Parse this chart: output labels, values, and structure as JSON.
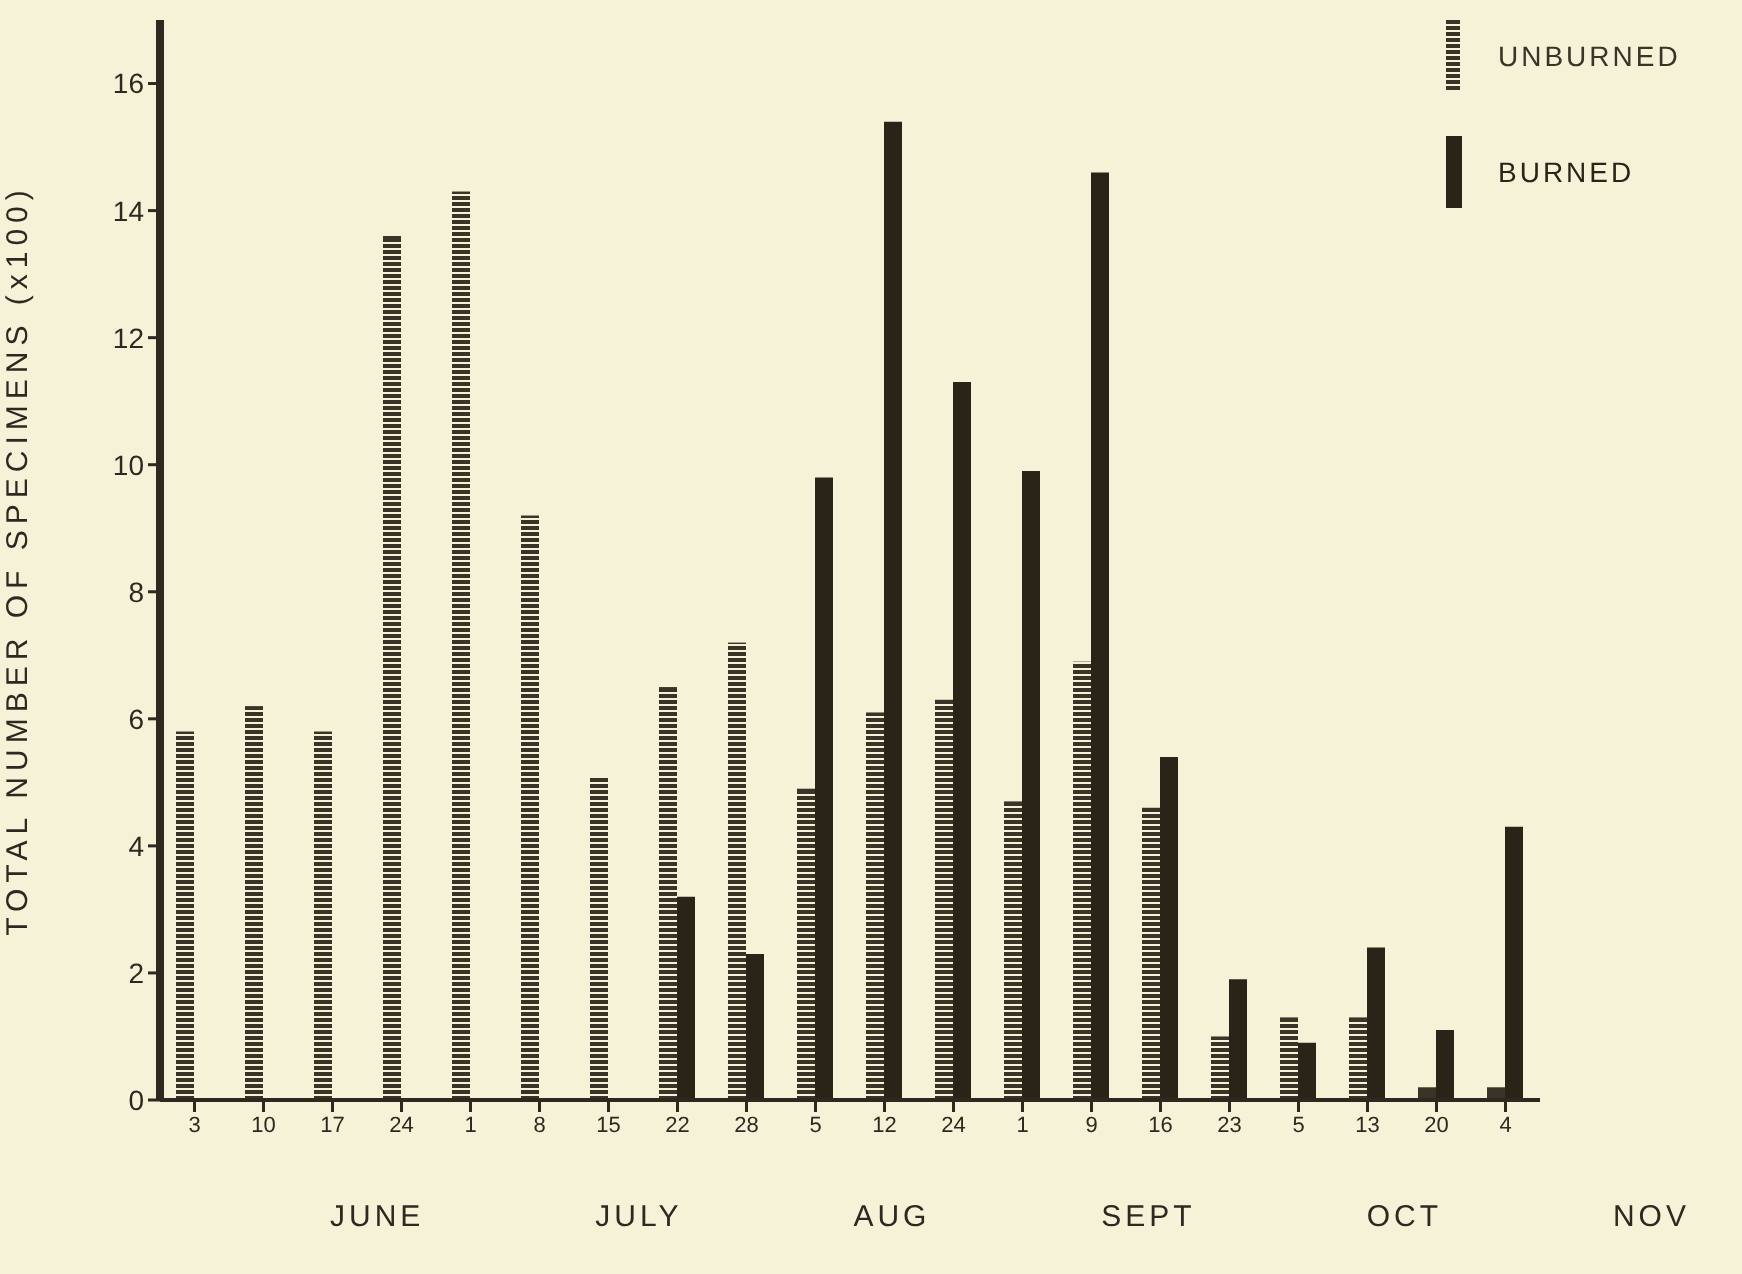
{
  "chart_data": {
    "type": "bar",
    "ylabel": "TOTAL NUMBER OF SPECIMENS (x100)",
    "categories": [
      "3",
      "10",
      "17",
      "24",
      "1",
      "8",
      "15",
      "22",
      "28",
      "5",
      "12",
      "24",
      "1",
      "9",
      "16",
      "23",
      "5",
      "13",
      "20",
      "4"
    ],
    "series": [
      {
        "name": "UNBURNED",
        "color": "#3a3428",
        "values": [
          5.8,
          6.2,
          5.8,
          13.6,
          14.3,
          9.2,
          5.1,
          6.5,
          7.2,
          4.9,
          6.1,
          6.3,
          4.7,
          6.9,
          4.6,
          1.0,
          1.3,
          1.3,
          0.2,
          0.2
        ]
      },
      {
        "name": "BURNED",
        "color": "#2a2418",
        "values": [
          0,
          0,
          0,
          0,
          0,
          0,
          0,
          3.2,
          2.3,
          9.8,
          15.4,
          11.3,
          9.9,
          14.6,
          5.4,
          1.9,
          0.9,
          2.4,
          1.1,
          4.3
        ]
      }
    ],
    "ylim": [
      0,
      17
    ],
    "yticks": [
      0,
      2,
      4,
      6,
      8,
      10,
      12,
      14,
      16
    ],
    "grid": false,
    "legend": "top right",
    "annotations": [
      "JUNE",
      "JULY",
      "AUG",
      "SEPT",
      "OCT",
      "NOV"
    ]
  }
}
